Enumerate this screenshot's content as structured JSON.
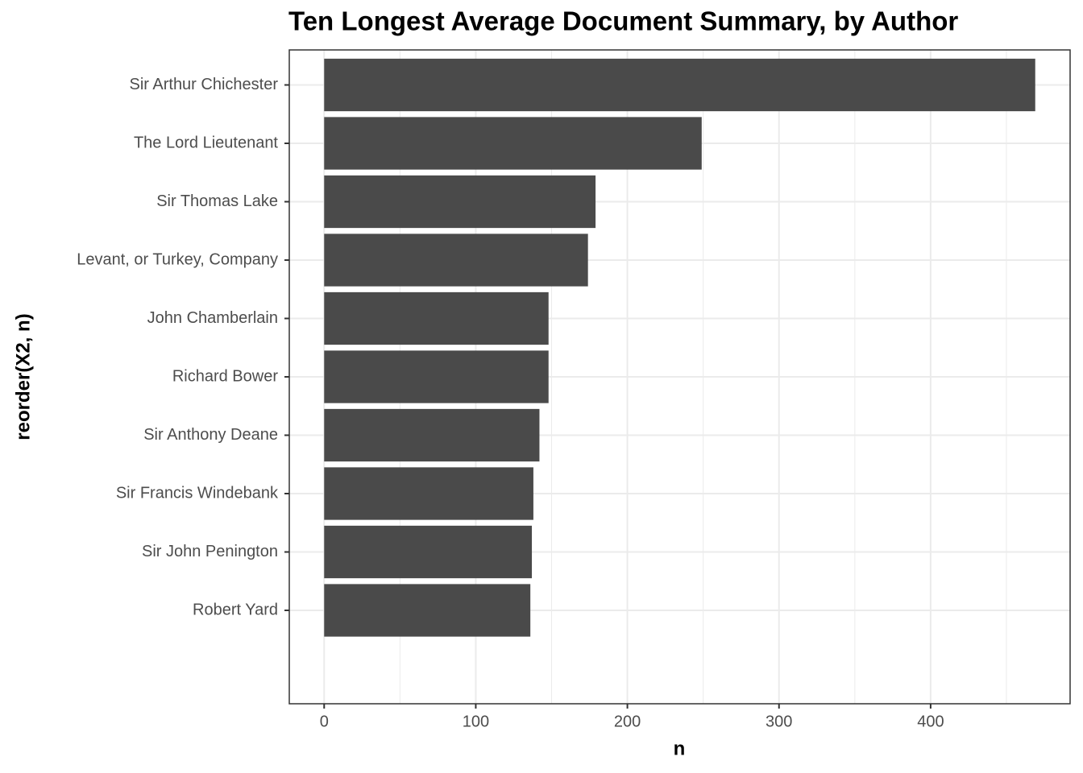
{
  "chart_data": {
    "type": "barh",
    "title": "Ten Longest Average Document Summary, by Author",
    "x_label": "n",
    "y_label": "reorder(X2, n)",
    "categories": [
      "Sir Arthur Chichester",
      "The Lord Lieutenant",
      "Sir Thomas Lake",
      "Levant, or Turkey, Company",
      "John Chamberlain",
      "Richard Bower",
      "Sir Anthony Deane",
      "Sir Francis Windebank",
      "Sir John Penington",
      "Robert Yard"
    ],
    "values": [
      469,
      249,
      179,
      174,
      148,
      148,
      142,
      138,
      137,
      136
    ],
    "color": "#4a4a4a",
    "xlim": [
      -23,
      492
    ],
    "xticks": [
      0,
      100,
      200,
      300,
      400
    ],
    "x_minor_grid": [
      50,
      150,
      250,
      350,
      450
    ],
    "grid": true
  }
}
